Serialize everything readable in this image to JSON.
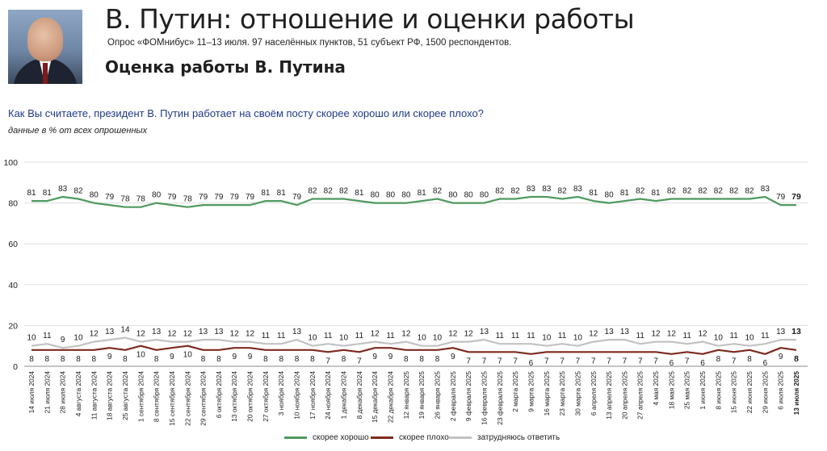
{
  "header": {
    "title": "В. Путин: отношение и оценки работы",
    "source": "Опрос «ФОМнибус» 11–13 июля. 97 населённых пунктов, 51 субъект РФ, 1500 респондентов.",
    "subtitle": "Оценка работы В. Путина"
  },
  "question": "Как Вы считаете, президент В. Путин работает на своём посту скорее хорошо или скорее плохо?",
  "note": "данные в % от всех опрошенных",
  "colors": {
    "good": "#4f9a5f",
    "bad": "#7d2a1e",
    "hard": "#c2c2c2",
    "grid": "#dddddd"
  },
  "legend": {
    "good": "скорее хорошо",
    "bad": "скорее плохо",
    "hard": "затрудняюсь ответить"
  },
  "chart_data": {
    "type": "line",
    "ylim": [
      0,
      100
    ],
    "yticks": [
      0,
      20,
      40,
      60,
      80,
      100
    ],
    "grid": true,
    "legend_position": "bottom",
    "categories": [
      "14 июля 2024",
      "21 июля 2024",
      "28 июля 2024",
      "4 августа 2024",
      "11 августа 2024",
      "18 августа 2024",
      "25 августа 2024",
      "1 сентября 2024",
      "8 сентября 2024",
      "15 сентября 2024",
      "22 сентября 2024",
      "29 сентября 2024",
      "6 октября 2024",
      "13 октября 2024",
      "20 октября 2024",
      "27 октября 2024",
      "3 ноября 2024",
      "10 ноября 2024",
      "17 ноября 2024",
      "24 ноября 2024",
      "1 декабря 2024",
      "8 декабря 2024",
      "15 декабря 2024",
      "22 декабря 2024",
      "12 января 2025",
      "19 января 2025",
      "26 января 2025",
      "2 февраля 2025",
      "9 февраля 2025",
      "16 февраля 2025",
      "23 февраля 2025",
      "2 марта 2025",
      "9 марта 2025",
      "16 марта 2025",
      "23 марта 2025",
      "30 марта 2025",
      "6 апреля 2025",
      "13 апреля 2025",
      "20 апреля 2025",
      "27 апреля 2025",
      "4 мая 2025",
      "18 мая 2025",
      "25 мая 2025",
      "1 июня 2025",
      "8 июня 2025",
      "15 июня 2025",
      "22 июня 2025",
      "29 июня 2025",
      "6 июля 2025",
      "13 июля 2025"
    ],
    "series": [
      {
        "name": "скорее хорошо",
        "key": "good",
        "values": [
          81,
          81,
          83,
          82,
          80,
          79,
          78,
          78,
          80,
          79,
          78,
          79,
          79,
          79,
          79,
          81,
          81,
          79,
          82,
          82,
          82,
          81,
          80,
          80,
          80,
          81,
          82,
          80,
          80,
          80,
          82,
          82,
          83,
          83,
          82,
          83,
          81,
          80,
          81,
          82,
          81,
          82,
          82,
          82,
          82,
          82,
          82,
          83,
          79,
          79
        ]
      },
      {
        "name": "скорее плохо",
        "key": "bad",
        "values": [
          8,
          8,
          8,
          8,
          8,
          9,
          8,
          10,
          8,
          9,
          10,
          8,
          8,
          9,
          9,
          8,
          8,
          8,
          8,
          7,
          8,
          7,
          9,
          9,
          8,
          8,
          8,
          9,
          7,
          7,
          7,
          7,
          6,
          7,
          7,
          7,
          7,
          7,
          7,
          7,
          7,
          6,
          7,
          6,
          8,
          7,
          8,
          6,
          9,
          8
        ]
      },
      {
        "name": "затрудняюсь ответить",
        "key": "hard",
        "values": [
          10,
          11,
          9,
          10,
          12,
          13,
          14,
          12,
          13,
          12,
          12,
          13,
          13,
          12,
          12,
          11,
          11,
          13,
          10,
          11,
          10,
          11,
          12,
          11,
          12,
          10,
          10,
          12,
          12,
          13,
          11,
          11,
          11,
          10,
          11,
          10,
          12,
          13,
          13,
          11,
          12,
          12,
          11,
          12,
          10,
          11,
          10,
          11,
          13,
          13
        ]
      }
    ]
  }
}
